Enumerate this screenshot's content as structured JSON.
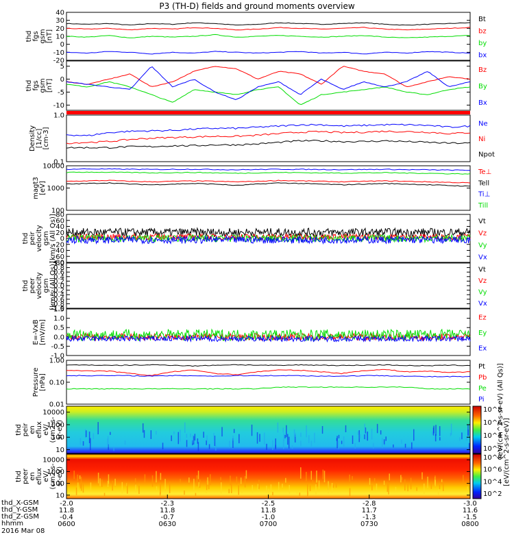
{
  "title": "P3 (TH-D) fields and ground moments overview",
  "colors": {
    "black": "#000000",
    "red": "#ff0000",
    "green": "#00dd00",
    "blue": "#0000ff"
  },
  "chart_data": [
    {
      "type": "line",
      "panel": "fgs",
      "ylabel": [
        "thd",
        "fgs",
        "gsm",
        "[nT]"
      ],
      "ylim": [
        -20,
        40
      ],
      "yticks": [
        "40",
        "30",
        "20",
        "10",
        "0",
        "-10",
        "-20"
      ],
      "series": [
        {
          "name": "Bt",
          "color": "#000000",
          "values": [
            26,
            25,
            26,
            24,
            26,
            25,
            27,
            26,
            24,
            25,
            27,
            26,
            25,
            26,
            27,
            25,
            24,
            25,
            26,
            27
          ]
        },
        {
          "name": "bz",
          "color": "#ff0000",
          "values": [
            20,
            19,
            20,
            18,
            20,
            19,
            21,
            20,
            18,
            19,
            21,
            20,
            19,
            20,
            21,
            19,
            18,
            19,
            20,
            21
          ]
        },
        {
          "name": "by",
          "color": "#00dd00",
          "values": [
            10,
            9,
            11,
            8,
            10,
            9,
            10,
            12,
            9,
            10,
            11,
            10,
            9,
            10,
            11,
            9,
            8,
            9,
            10,
            11
          ]
        },
        {
          "name": "bx",
          "color": "#0000ff",
          "values": [
            -10,
            -11,
            -9,
            -10,
            -12,
            -10,
            -11,
            -9,
            -10,
            -11,
            -10,
            -9,
            -11,
            -10,
            -12,
            -10,
            -11,
            -9,
            -10,
            -11
          ]
        }
      ]
    },
    {
      "type": "line",
      "panel": "fgs-dsl",
      "ylabel": [
        "thd",
        "fgs",
        "gsm",
        "[nT]"
      ],
      "ylim": [
        -12,
        7
      ],
      "yticks": [
        "5",
        "0",
        "-5",
        "-10"
      ],
      "series": [
        {
          "name": "Bz",
          "color": "#ff0000",
          "values": [
            -1,
            -2,
            0,
            2,
            -3,
            -1,
            3,
            5,
            4,
            0,
            3,
            2,
            -2,
            5,
            3,
            2,
            -3,
            -1,
            1,
            0
          ]
        },
        {
          "name": "By",
          "color": "#00dd00",
          "values": [
            -2,
            -3,
            -1,
            -3,
            -6,
            -9,
            -4,
            -5,
            -6,
            -4,
            -3,
            -10,
            -6,
            -5,
            -4,
            -3,
            -5,
            -6,
            -4,
            -3
          ]
        },
        {
          "name": "Bx",
          "color": "#0000ff",
          "values": [
            -1,
            -2,
            -3,
            -4,
            5,
            -3,
            0,
            -5,
            -8,
            -3,
            -1,
            -6,
            0,
            -4,
            -1,
            -3,
            -1,
            3,
            -3,
            -1
          ]
        }
      ]
    },
    {
      "type": "line",
      "panel": "density",
      "ylabel": [
        "Density",
        "[1/cc]",
        "[cm-3]"
      ],
      "ylim": [
        0.1,
        1.0
      ],
      "scale": "log",
      "yticks": [
        "1.0",
        "0.1"
      ],
      "series": [
        {
          "name": "Ne",
          "color": "#0000ff",
          "values": [
            0.38,
            0.36,
            0.42,
            0.45,
            0.46,
            0.47,
            0.5,
            0.52,
            0.52,
            0.55,
            0.58,
            0.62,
            0.62,
            0.58,
            0.6,
            0.62,
            0.62,
            0.6,
            0.55,
            0.58
          ]
        },
        {
          "name": "Ni",
          "color": "#ff0000",
          "values": [
            0.25,
            0.26,
            0.27,
            0.3,
            0.32,
            0.33,
            0.34,
            0.35,
            0.35,
            0.37,
            0.4,
            0.43,
            0.44,
            0.42,
            0.43,
            0.45,
            0.44,
            0.43,
            0.4,
            0.42
          ]
        },
        {
          "name": "Npot",
          "color": "#000000",
          "values": [
            0.2,
            0.2,
            0.2,
            0.21,
            0.21,
            0.22,
            0.22,
            0.23,
            0.23,
            0.24,
            0.26,
            0.28,
            0.28,
            0.27,
            0.27,
            0.28,
            0.27,
            0.26,
            0.25,
            0.25
          ]
        }
      ]
    },
    {
      "type": "line",
      "panel": "temperature",
      "ylabel": [
        "magt3",
        "[eV]"
      ],
      "ylim": [
        100,
        10000
      ],
      "scale": "log",
      "yticks": [
        "10000",
        "1000",
        "100"
      ],
      "series": [
        {
          "name": "Te⊥",
          "color": "#ff0000",
          "values": [
            2000,
            2100,
            2200,
            2000,
            1900,
            2000,
            2100,
            2000,
            1900,
            2000,
            2200,
            2100,
            2000,
            1900,
            2000,
            2100,
            2000,
            1900,
            1800,
            1700
          ]
        },
        {
          "name": "Tell",
          "color": "#000000",
          "values": [
            1500,
            1600,
            1700,
            1500,
            1400,
            1500,
            1600,
            1500,
            1300,
            1500,
            1700,
            1600,
            1500,
            1400,
            1500,
            1600,
            1500,
            1400,
            1300,
            1200
          ]
        },
        {
          "name": "Ti⊥",
          "color": "#0000ff",
          "values": [
            7000,
            7200,
            7100,
            7000,
            6800,
            6900,
            7000,
            6800,
            6600,
            6800,
            7000,
            6900,
            6800,
            6700,
            6800,
            6900,
            6700,
            6600,
            6400,
            6300
          ]
        },
        {
          "name": "Till",
          "color": "#00dd00",
          "values": [
            5000,
            5200,
            5100,
            5000,
            4800,
            4900,
            5000,
            4800,
            4600,
            4800,
            5000,
            4900,
            4800,
            4700,
            4800,
            4900,
            4700,
            4600,
            4400,
            4300
          ]
        }
      ]
    },
    {
      "type": "line",
      "panel": "peir-velocity",
      "ylabel": [
        "thd",
        "peir",
        "velocity",
        "gsm",
        "[km/s (All Qs)]"
      ],
      "ylim": [
        -80,
        80
      ],
      "yticks": [
        "80",
        "60",
        "40",
        "20",
        "0",
        "-20",
        "-40",
        "-60",
        "-80"
      ],
      "series": [
        {
          "name": "Vt",
          "color": "#000000",
          "noise": 14,
          "base": 20
        },
        {
          "name": "Vz",
          "color": "#ff0000",
          "noise": 10,
          "base": 5
        },
        {
          "name": "Vy",
          "color": "#00dd00",
          "noise": 12,
          "base": 0
        },
        {
          "name": "Vx",
          "color": "#0000ff",
          "noise": 12,
          "base": -5
        }
      ]
    },
    {
      "type": "line",
      "panel": "peer-velocity",
      "ylabel": [
        "thd",
        "peer",
        "velocity",
        "gsm",
        "[km/s (All Qs)]"
      ],
      "ylim": [
        -1,
        1
      ],
      "yticks": [
        "1.0",
        "0.8",
        "0.6",
        "0.4",
        "0.2",
        "0.0",
        "-0.2",
        "-0.4",
        "-0.6",
        "-0.8",
        "-1.0"
      ],
      "series": [
        {
          "name": "Vt",
          "color": "#000000"
        },
        {
          "name": "Vz",
          "color": "#ff0000"
        },
        {
          "name": "Vy",
          "color": "#00dd00"
        },
        {
          "name": "Vx",
          "color": "#0000ff"
        }
      ]
    },
    {
      "type": "line",
      "panel": "e-field",
      "ylabel": [
        "E=-VxB",
        "[mV/m]"
      ],
      "ylim": [
        -1.0,
        1.5
      ],
      "yticks": [
        "1.5",
        "1.0",
        "0.5",
        "0.0",
        "-0.5",
        "-1.0"
      ],
      "series": [
        {
          "name": "Ez",
          "color": "#ff0000",
          "noise": 0.18,
          "base": 0
        },
        {
          "name": "Ey",
          "color": "#00dd00",
          "noise": 0.3,
          "base": 0.1
        },
        {
          "name": "Ex",
          "color": "#0000ff",
          "noise": 0.15,
          "base": -0.1
        }
      ]
    },
    {
      "type": "line",
      "panel": "pressure",
      "ylabel": [
        "Pressure",
        "[nPa]"
      ],
      "ylim": [
        0.01,
        1.0
      ],
      "scale": "log",
      "yticks": [
        "1.00",
        "0.10",
        "0.01"
      ],
      "series": [
        {
          "name": "Pt",
          "color": "#000000",
          "values": [
            0.6,
            0.62,
            0.58,
            0.6,
            0.62,
            0.6,
            0.55,
            0.6,
            0.63,
            0.6,
            0.58,
            0.62,
            0.6,
            0.58,
            0.6,
            0.62,
            0.58,
            0.56,
            0.6,
            0.58
          ]
        },
        {
          "name": "Pb",
          "color": "#ff0000",
          "values": [
            0.35,
            0.33,
            0.32,
            0.25,
            0.2,
            0.3,
            0.36,
            0.25,
            0.22,
            0.3,
            0.36,
            0.35,
            0.3,
            0.25,
            0.34,
            0.38,
            0.3,
            0.32,
            0.28,
            0.3
          ]
        },
        {
          "name": "Pe",
          "color": "#00dd00",
          "values": [
            0.05,
            0.05,
            0.05,
            0.05,
            0.05,
            0.05,
            0.05,
            0.05,
            0.05,
            0.05,
            0.06,
            0.06,
            0.06,
            0.06,
            0.06,
            0.06,
            0.06,
            0.05,
            0.05,
            0.05
          ]
        },
        {
          "name": "Pi",
          "color": "#0000ff",
          "values": [
            0.2,
            0.2,
            0.2,
            0.2,
            0.19,
            0.2,
            0.2,
            0.19,
            0.2,
            0.2,
            0.2,
            0.2,
            0.19,
            0.19,
            0.2,
            0.2,
            0.19,
            0.18,
            0.18,
            0.18
          ]
        }
      ]
    },
    {
      "type": "heatmap",
      "panel": "peir-eflux",
      "ylabel": [
        "thd",
        "peir",
        "en",
        "eflux",
        "eV/",
        "(cm2-s-",
        "sr-eV)"
      ],
      "ylim": [
        5,
        30000
      ],
      "scale": "log",
      "yticks": [
        "10000",
        "1000",
        "100",
        "10"
      ]
    },
    {
      "type": "heatmap",
      "panel": "peer-eflux",
      "ylabel": [
        "thd",
        "peer",
        "en",
        "eflux",
        "eV/",
        "(cm2-s-",
        "sr-eV)"
      ],
      "ylim": [
        5,
        30000
      ],
      "scale": "log",
      "yticks": [
        "10000",
        "1000",
        "100",
        "10"
      ]
    }
  ],
  "colorbar": {
    "label": "[eV/(cm^2-s-sr-eV)]",
    "label2": "[eV/(cm^2-s-sr-eV) (All Qs)]",
    "upper_ticks": [
      "10^8",
      "10^6",
      "10^4",
      "10^2"
    ],
    "lower_ticks": [
      "10^8",
      "10^6",
      "10^4",
      "10^2"
    ]
  },
  "xaxis": {
    "rows": [
      {
        "label": "thd_X-GSM",
        "values": [
          "-2.0",
          "-2.3",
          "-2.5",
          "-2.8",
          "-3.0"
        ]
      },
      {
        "label": "thd_Y-GSM",
        "values": [
          "11.8",
          "11.8",
          "11.8",
          "11.7",
          "11.6"
        ]
      },
      {
        "label": "thd_Z-GSM",
        "values": [
          "-0.4",
          "-0.7",
          "-1.0",
          "-1.3",
          "-1.5"
        ]
      },
      {
        "label": "hhmm",
        "values": [
          "0600",
          "0630",
          "0700",
          "0730",
          "0800"
        ]
      }
    ],
    "date": "2016 Mar 08"
  }
}
